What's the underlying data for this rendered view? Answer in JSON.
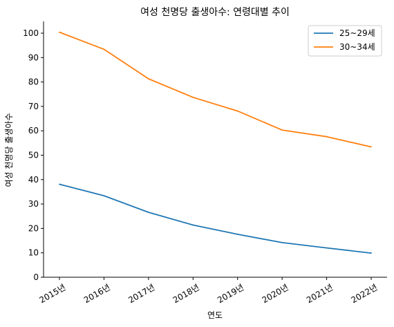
{
  "chart_data": {
    "type": "line",
    "title": "여성 천명당 출생아수: 연령대별 추이",
    "xlabel": "연도",
    "ylabel": "여성 천명당 출생아수",
    "categories": [
      "2015년",
      "2016년",
      "2017년",
      "2018년",
      "2019년",
      "2020년",
      "2021년",
      "2022년"
    ],
    "ylim": [
      0,
      105
    ],
    "yticks": [
      0,
      10,
      20,
      30,
      40,
      50,
      60,
      70,
      80,
      90,
      100
    ],
    "grid": false,
    "legend": "top-right",
    "series": [
      {
        "name": "25~29세",
        "color": "#1f77b4",
        "values": [
          38.1,
          33.4,
          26.6,
          21.4,
          17.6,
          14.2,
          12.0,
          9.9
        ]
      },
      {
        "name": "30~34세",
        "color": "#ff7f0e",
        "values": [
          100.4,
          93.4,
          81.3,
          73.7,
          68.1,
          60.3,
          57.6,
          53.4
        ]
      }
    ]
  }
}
